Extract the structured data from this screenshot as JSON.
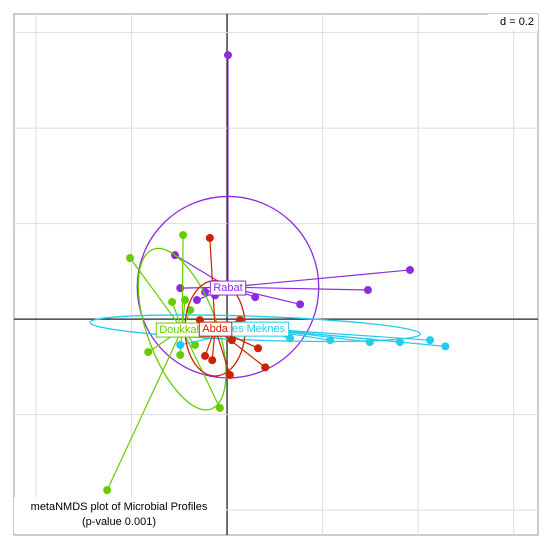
{
  "chart_data": {
    "type": "class-scatter",
    "grid_label": "d = 0.2",
    "title": "metaNMDS plot of Microbial Profiles",
    "subtitle": "(p-value 0.001)",
    "xlim": [
      -0.446,
      0.651
    ],
    "ylim": [
      -0.452,
      0.639
    ],
    "grid_x": [
      -0.4,
      -0.2,
      0,
      0.2,
      0.4,
      0.6
    ],
    "grid_y": [
      -0.4,
      -0.2,
      0,
      0.2,
      0.4,
      0.6
    ],
    "groups": [
      {
        "name": "Rabat",
        "color": "#8b2be2",
        "center": [
          0.002,
          0.067
        ],
        "ellipse": {
          "rx": 0.19,
          "ry": 0.19,
          "angle": 0
        },
        "x": [
          0.002,
          0.383,
          0.295,
          0.153,
          0.059,
          -0.098,
          -0.109,
          -0.046,
          -0.025,
          -0.063
        ],
        "y": [
          0.553,
          0.103,
          0.061,
          0.031,
          0.046,
          0.065,
          0.134,
          0.057,
          0.05,
          0.04
        ]
      },
      {
        "name": "Doukkala",
        "color": "#66cc00",
        "center": [
          -0.094,
          -0.021
        ],
        "ellipse": {
          "rx": 0.073,
          "ry": 0.178,
          "angle": 20
        },
        "x": [
          -0.251,
          -0.203,
          -0.092,
          -0.165,
          -0.015,
          -0.115,
          -0.088,
          -0.067,
          -0.098,
          -0.077
        ],
        "y": [
          -0.358,
          0.128,
          0.176,
          -0.069,
          -0.186,
          0.036,
          0.04,
          -0.054,
          -0.075,
          0.019
        ]
      },
      {
        "name": "Fes Meknes",
        "color": "#22ccee",
        "center": [
          0.059,
          -0.019
        ],
        "ellipse": {
          "rx": 0.346,
          "ry": 0.025,
          "angle": -2
        },
        "x": [
          0.457,
          0.425,
          0.362,
          0.299,
          0.216,
          0.132,
          0.027,
          -0.025,
          -0.067,
          -0.098
        ],
        "y": [
          -0.057,
          -0.044,
          -0.048,
          -0.048,
          -0.044,
          -0.04,
          -0.023,
          -0.013,
          -0.023,
          -0.054
        ]
      },
      {
        "name": "Abda",
        "color": "#cc2200",
        "center": [
          -0.025,
          -0.019
        ],
        "ellipse": {
          "rx": 0.063,
          "ry": 0.1,
          "angle": 0
        },
        "x": [
          -0.036,
          0.01,
          0.065,
          0.08,
          0.006,
          -0.046,
          -0.031,
          0.027,
          -0.057
        ],
        "y": [
          0.17,
          -0.044,
          -0.061,
          -0.101,
          -0.117,
          -0.077,
          -0.086,
          -0.002,
          -0.002
        ]
      }
    ]
  }
}
